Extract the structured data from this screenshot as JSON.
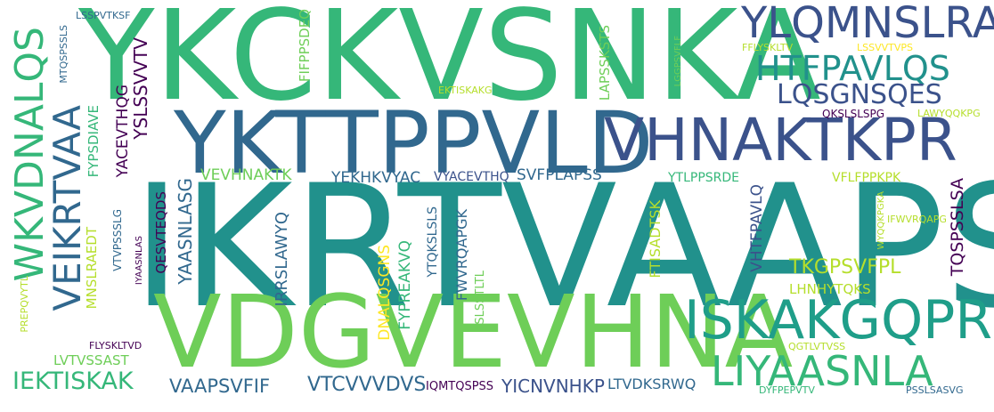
{
  "palette": {
    "dark_purple": "#440154",
    "indigo": "#3b528b",
    "blue": "#31688e",
    "teal": "#21918c",
    "green_teal": "#1f9e89",
    "green": "#35b779",
    "light_green": "#6ece58",
    "lime": "#b5de2b",
    "yellow": "#fde725"
  },
  "words": [
    {
      "text": "IKRTVAAPS"
    },
    {
      "text": "YKCKVSNKA"
    },
    {
      "text": "VDGVEVHNA"
    },
    {
      "text": "YKTTPPVLD"
    },
    {
      "text": "VHNAKTKPR"
    },
    {
      "text": "YLQMNSLRA"
    },
    {
      "text": "HTFPAVLQS"
    },
    {
      "text": "LQSGNSQES"
    },
    {
      "text": "ISKAKGQPR"
    },
    {
      "text": "LIYAASNLA"
    },
    {
      "text": "WKVDNALQS"
    },
    {
      "text": "VEIKRTVAA"
    },
    {
      "text": "IEKTISKAK"
    },
    {
      "text": "VAAPSVFIF"
    },
    {
      "text": "VTCVVVDVS"
    },
    {
      "text": "YICNVNHKP"
    },
    {
      "text": "LTVDKSRWQ"
    },
    {
      "text": "IQMTQSPSS"
    },
    {
      "text": "LVTVSSAST"
    },
    {
      "text": "FLYSKLTVD"
    },
    {
      "text": "PREPQVYTL"
    },
    {
      "text": "MNSLRAEDT"
    },
    {
      "text": "FYPSDIAVE"
    },
    {
      "text": "MTQSPSSLS"
    },
    {
      "text": "LSSPVTKSF"
    },
    {
      "text": "YACEVTHQG"
    },
    {
      "text": "YSLSSVVTV"
    },
    {
      "text": "FIFPPSDEQ"
    },
    {
      "text": "VEVHNAKTK"
    },
    {
      "text": "YEKHKVYAC"
    },
    {
      "text": "VYACEVTHQ"
    },
    {
      "text": "SVFPLAPSS"
    },
    {
      "text": "YTLPPSRDE"
    },
    {
      "text": "VFLFPPKPK"
    },
    {
      "text": "YAASNLASG"
    },
    {
      "text": "QESVTEQDS"
    },
    {
      "text": "VTVPSSSLG"
    },
    {
      "text": "IYAASNLAS"
    },
    {
      "text": "IRRSLAWYQ"
    },
    {
      "text": "DNALQSGNS"
    },
    {
      "text": "FYPREAKVQ"
    },
    {
      "text": "YTQKSLSLS"
    },
    {
      "text": "FWVRQAPGK"
    },
    {
      "text": "YSLSSTLTL"
    },
    {
      "text": "FTISADTSK"
    },
    {
      "text": "VHTFPAVLQ"
    },
    {
      "text": "TKGPSVFPL"
    },
    {
      "text": "LHNHYTQKS"
    },
    {
      "text": "TQSPSSLSA"
    },
    {
      "text": "IFWVRQAPG"
    },
    {
      "text": "WYQQKPGKA"
    },
    {
      "text": "QGTLVTVSS"
    },
    {
      "text": "DYFPEPVTV"
    },
    {
      "text": "PSSLSASVG"
    },
    {
      "text": "EKTISKAKG"
    },
    {
      "text": "LAPSSKSTS"
    },
    {
      "text": "LGGPSVFLF"
    },
    {
      "text": "FFLYSKLTV"
    },
    {
      "text": "LSSVVTVPS"
    },
    {
      "text": "QKSLSLSPG"
    },
    {
      "text": "LAWYQQKPG"
    }
  ]
}
